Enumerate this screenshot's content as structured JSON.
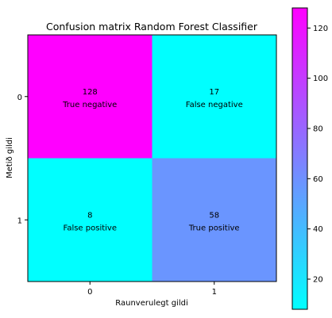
{
  "chart_data": {
    "type": "heatmap",
    "title": "Confusion matrix Random Forest Classifier",
    "xlabel": "Raunverulegt gildi",
    "ylabel": "Metið gildi",
    "x_tick_labels": [
      "0",
      "1"
    ],
    "y_tick_labels": [
      "0",
      "1"
    ],
    "cells": [
      {
        "row": 0,
        "col": 0,
        "value": 128,
        "label": "True negative",
        "color": "#ff00ff"
      },
      {
        "row": 0,
        "col": 1,
        "value": 17,
        "label": "False negative",
        "color": "#00ffff"
      },
      {
        "row": 1,
        "col": 0,
        "value": 8,
        "label": "False positive",
        "color": "#00ffff"
      },
      {
        "row": 1,
        "col": 1,
        "value": 58,
        "label": "True positive",
        "color": "#6a95ff"
      }
    ],
    "colorbar": {
      "colormap": "cool",
      "min": 8,
      "max": 128,
      "ticks": [
        20,
        40,
        60,
        80,
        100,
        120
      ],
      "color_low": "#00ffff",
      "color_high": "#ff00ff"
    }
  }
}
